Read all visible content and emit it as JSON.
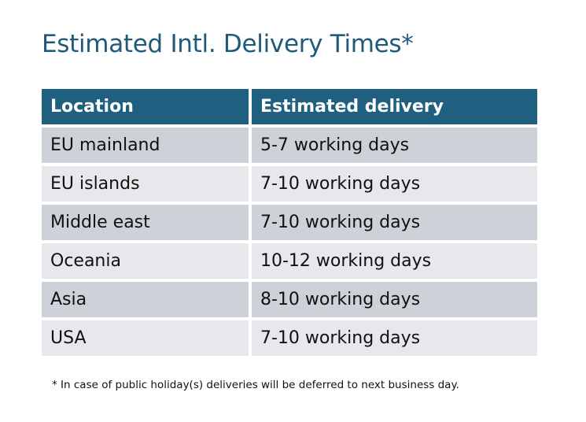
{
  "title": "Estimated Intl. Delivery Times*",
  "table": {
    "headers": [
      "Location",
      "Estimated delivery"
    ],
    "rows": [
      [
        "EU mainland",
        "5-7 working days"
      ],
      [
        "EU islands",
        "7-10 working days"
      ],
      [
        "Middle east",
        "7-10 working days"
      ],
      [
        "Oceania",
        "10-12 working days"
      ],
      [
        "Asia",
        "8-10 working days"
      ],
      [
        "USA",
        "7-10 working days"
      ]
    ]
  },
  "footnote": "* In case of public holiday(s) deliveries will be deferred to next business day.",
  "colors": {
    "header": "#1f6080",
    "title": "#1f5a78",
    "row_dark": "#cdd1d8",
    "row_light": "#e6e8eb"
  }
}
